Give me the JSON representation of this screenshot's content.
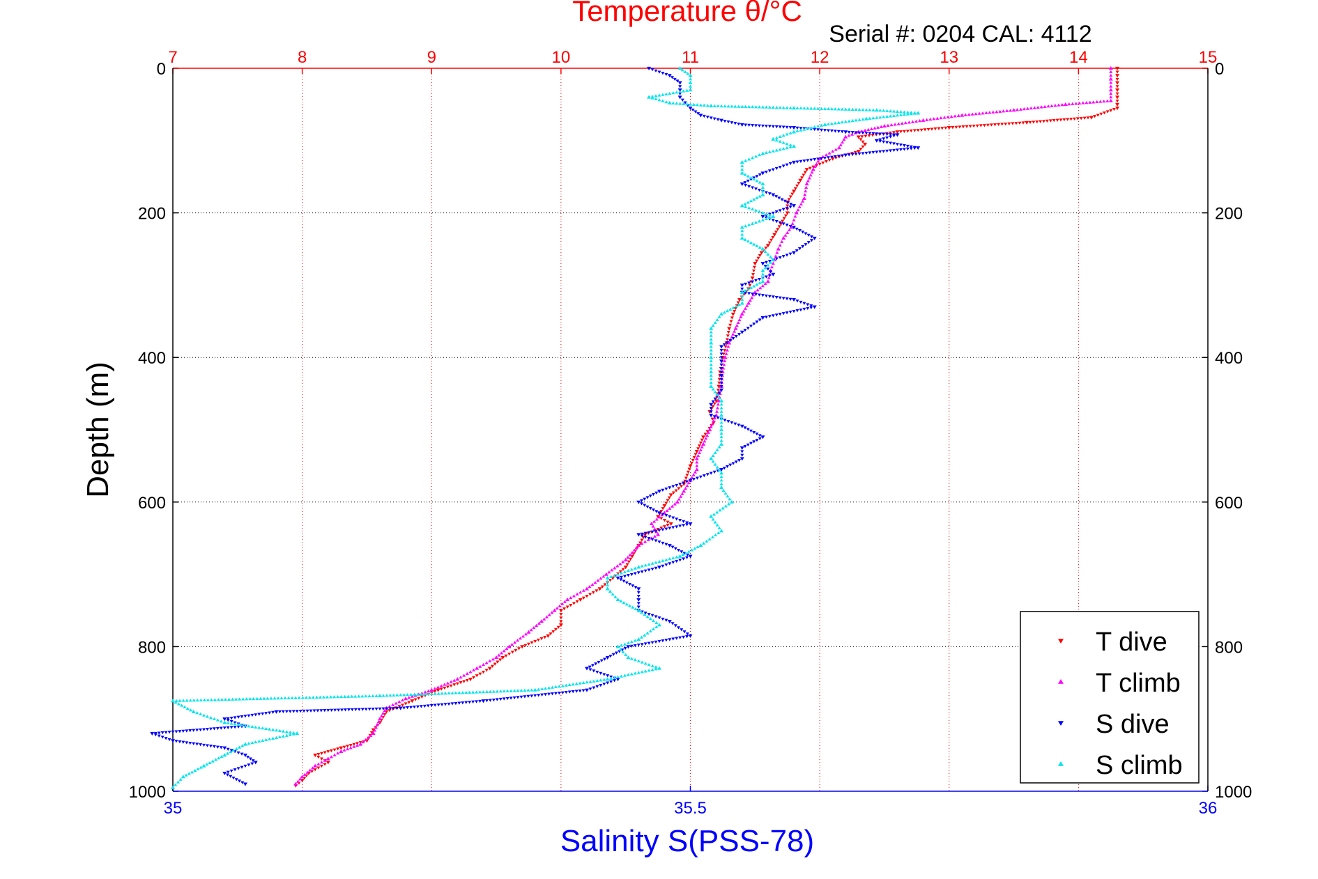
{
  "chart_data": {
    "type": "scatter",
    "title": "Temperature θ/°C",
    "subtitle": "Serial #: 0204  CAL: 4112",
    "ylabel": "Depth (m)",
    "xlabel": "Salinity S(PSS-78)",
    "y_axis": {
      "range": [
        0,
        1000
      ],
      "reversed": true,
      "ticks": [
        "0",
        "200",
        "400",
        "600",
        "800",
        "1000"
      ],
      "grid": true
    },
    "x_top_axis": {
      "quantity": "Temperature θ/°C",
      "range": [
        7,
        15
      ],
      "ticks": [
        "7",
        "8",
        "9",
        "10",
        "11",
        "12",
        "13",
        "14",
        "15"
      ],
      "color": "#ff0000",
      "grid": true
    },
    "x_bottom_axis": {
      "quantity": "Salinity S(PSS-78)",
      "range": [
        35,
        36
      ],
      "ticks": [
        "35",
        "35.5",
        "36"
      ],
      "color": "#0000ff"
    },
    "legend": {
      "placement": "bottom-right"
    },
    "series": [
      {
        "name": "T dive",
        "axis": "temperature",
        "color": "#ff0000",
        "marker": "triangle-down",
        "points": [
          [
            14.3,
            0
          ],
          [
            14.3,
            10
          ],
          [
            14.3,
            20
          ],
          [
            14.3,
            30
          ],
          [
            14.3,
            40
          ],
          [
            14.3,
            50
          ],
          [
            14.3,
            55
          ],
          [
            14.1,
            68
          ],
          [
            13.6,
            75
          ],
          [
            13.0,
            82
          ],
          [
            12.6,
            88
          ],
          [
            12.3,
            95
          ],
          [
            12.35,
            105
          ],
          [
            12.3,
            115
          ],
          [
            12.1,
            125
          ],
          [
            11.9,
            140
          ],
          [
            11.85,
            155
          ],
          [
            11.8,
            170
          ],
          [
            11.75,
            185
          ],
          [
            11.75,
            200
          ],
          [
            11.7,
            215
          ],
          [
            11.65,
            230
          ],
          [
            11.6,
            245
          ],
          [
            11.55,
            255
          ],
          [
            11.5,
            270
          ],
          [
            11.48,
            290
          ],
          [
            11.45,
            305
          ],
          [
            11.38,
            320
          ],
          [
            11.33,
            340
          ],
          [
            11.3,
            360
          ],
          [
            11.28,
            380
          ],
          [
            11.25,
            400
          ],
          [
            11.23,
            420
          ],
          [
            11.22,
            440
          ],
          [
            11.2,
            460
          ],
          [
            11.15,
            475
          ],
          [
            11.18,
            490
          ],
          [
            11.1,
            510
          ],
          [
            11.05,
            530
          ],
          [
            11.0,
            550
          ],
          [
            10.95,
            575
          ],
          [
            10.85,
            590
          ],
          [
            10.8,
            605
          ],
          [
            10.75,
            620
          ],
          [
            10.85,
            630
          ],
          [
            10.65,
            645
          ],
          [
            10.6,
            660
          ],
          [
            10.55,
            675
          ],
          [
            10.5,
            690
          ],
          [
            10.4,
            705
          ],
          [
            10.3,
            720
          ],
          [
            10.15,
            735
          ],
          [
            10.0,
            750
          ],
          [
            10.0,
            770
          ],
          [
            9.9,
            785
          ],
          [
            9.7,
            800
          ],
          [
            9.55,
            815
          ],
          [
            9.45,
            830
          ],
          [
            9.3,
            845
          ],
          [
            9.05,
            860
          ],
          [
            8.85,
            875
          ],
          [
            8.65,
            890
          ],
          [
            8.6,
            905
          ],
          [
            8.55,
            915
          ],
          [
            8.5,
            930
          ],
          [
            8.3,
            940
          ],
          [
            8.1,
            950
          ],
          [
            8.2,
            960
          ],
          [
            8.05,
            975
          ],
          [
            8.0,
            985
          ],
          [
            7.95,
            992
          ]
        ]
      },
      {
        "name": "T climb",
        "axis": "temperature",
        "color": "#ff00ff",
        "marker": "triangle-up",
        "points": [
          [
            14.25,
            0
          ],
          [
            14.25,
            15
          ],
          [
            14.25,
            30
          ],
          [
            14.25,
            45
          ],
          [
            13.9,
            50
          ],
          [
            13.5,
            58
          ],
          [
            13.1,
            65
          ],
          [
            12.8,
            72
          ],
          [
            12.5,
            80
          ],
          [
            12.3,
            88
          ],
          [
            12.2,
            95
          ],
          [
            12.15,
            110
          ],
          [
            12.0,
            125
          ],
          [
            11.95,
            140
          ],
          [
            11.9,
            160
          ],
          [
            11.88,
            180
          ],
          [
            11.82,
            200
          ],
          [
            11.78,
            220
          ],
          [
            11.72,
            235
          ],
          [
            11.68,
            250
          ],
          [
            11.65,
            265
          ],
          [
            11.62,
            280
          ],
          [
            11.6,
            295
          ],
          [
            11.5,
            310
          ],
          [
            11.45,
            325
          ],
          [
            11.4,
            340
          ],
          [
            11.35,
            360
          ],
          [
            11.3,
            380
          ],
          [
            11.27,
            400
          ],
          [
            11.25,
            420
          ],
          [
            11.24,
            440
          ],
          [
            11.22,
            460
          ],
          [
            11.2,
            480
          ],
          [
            11.15,
            500
          ],
          [
            11.1,
            520
          ],
          [
            11.05,
            540
          ],
          [
            11.05,
            555
          ],
          [
            11.0,
            570
          ],
          [
            10.95,
            585
          ],
          [
            10.9,
            600
          ],
          [
            10.8,
            615
          ],
          [
            10.7,
            630
          ],
          [
            10.75,
            645
          ],
          [
            10.6,
            660
          ],
          [
            10.5,
            680
          ],
          [
            10.35,
            700
          ],
          [
            10.2,
            720
          ],
          [
            10.05,
            735
          ],
          [
            9.95,
            750
          ],
          [
            9.85,
            765
          ],
          [
            9.75,
            780
          ],
          [
            9.6,
            800
          ],
          [
            9.5,
            815
          ],
          [
            9.35,
            830
          ],
          [
            9.2,
            845
          ],
          [
            9.0,
            860
          ],
          [
            8.8,
            872
          ],
          [
            8.65,
            885
          ],
          [
            8.6,
            900
          ],
          [
            8.55,
            920
          ],
          [
            8.45,
            935
          ],
          [
            8.3,
            945
          ],
          [
            8.2,
            955
          ],
          [
            8.1,
            965
          ],
          [
            8.0,
            980
          ],
          [
            7.95,
            990
          ]
        ]
      },
      {
        "name": "S dive",
        "axis": "salinity",
        "color": "#0000ff",
        "marker": "triangle-down",
        "points": [
          [
            35.46,
            0
          ],
          [
            35.48,
            10
          ],
          [
            35.49,
            20
          ],
          [
            35.49,
            30
          ],
          [
            35.49,
            40
          ],
          [
            35.5,
            55
          ],
          [
            35.51,
            65
          ],
          [
            35.53,
            72
          ],
          [
            35.55,
            78
          ],
          [
            35.6,
            82
          ],
          [
            35.65,
            88
          ],
          [
            35.7,
            92
          ],
          [
            35.68,
            100
          ],
          [
            35.72,
            110
          ],
          [
            35.65,
            120
          ],
          [
            35.6,
            130
          ],
          [
            35.57,
            145
          ],
          [
            35.55,
            160
          ],
          [
            35.58,
            175
          ],
          [
            35.6,
            190
          ],
          [
            35.57,
            205
          ],
          [
            35.6,
            220
          ],
          [
            35.62,
            235
          ],
          [
            35.6,
            255
          ],
          [
            35.57,
            270
          ],
          [
            35.58,
            285
          ],
          [
            35.55,
            300
          ],
          [
            35.55,
            310
          ],
          [
            35.6,
            320
          ],
          [
            35.62,
            330
          ],
          [
            35.57,
            345
          ],
          [
            35.55,
            365
          ],
          [
            35.53,
            385
          ],
          [
            35.53,
            405
          ],
          [
            35.53,
            425
          ],
          [
            35.53,
            445
          ],
          [
            35.52,
            465
          ],
          [
            35.52,
            480
          ],
          [
            35.55,
            495
          ],
          [
            35.57,
            510
          ],
          [
            35.55,
            525
          ],
          [
            35.55,
            540
          ],
          [
            35.53,
            555
          ],
          [
            35.5,
            570
          ],
          [
            35.47,
            585
          ],
          [
            35.45,
            600
          ],
          [
            35.47,
            615
          ],
          [
            35.5,
            630
          ],
          [
            35.45,
            645
          ],
          [
            35.48,
            660
          ],
          [
            35.5,
            675
          ],
          [
            35.47,
            690
          ],
          [
            35.43,
            705
          ],
          [
            35.45,
            720
          ],
          [
            35.45,
            735
          ],
          [
            35.45,
            750
          ],
          [
            35.48,
            765
          ],
          [
            35.5,
            785
          ],
          [
            35.44,
            800
          ],
          [
            35.42,
            815
          ],
          [
            35.4,
            830
          ],
          [
            35.43,
            845
          ],
          [
            35.4,
            860
          ],
          [
            35.3,
            875
          ],
          [
            35.22,
            885
          ],
          [
            35.1,
            890
          ],
          [
            35.05,
            900
          ],
          [
            35.07,
            910
          ],
          [
            34.98,
            920
          ],
          [
            35.0,
            930
          ],
          [
            35.05,
            940
          ],
          [
            35.07,
            950
          ],
          [
            35.08,
            960
          ],
          [
            35.05,
            975
          ],
          [
            35.07,
            990
          ]
        ]
      },
      {
        "name": "S climb",
        "axis": "salinity",
        "color": "#00e5ee",
        "marker": "triangle-up",
        "points": [
          [
            35.49,
            0
          ],
          [
            35.5,
            10
          ],
          [
            35.5,
            20
          ],
          [
            35.5,
            30
          ],
          [
            35.46,
            40
          ],
          [
            35.48,
            48
          ],
          [
            35.52,
            52
          ],
          [
            35.6,
            55
          ],
          [
            35.68,
            58
          ],
          [
            35.72,
            62
          ],
          [
            35.67,
            70
          ],
          [
            35.63,
            78
          ],
          [
            35.6,
            88
          ],
          [
            35.58,
            98
          ],
          [
            35.6,
            108
          ],
          [
            35.57,
            118
          ],
          [
            35.55,
            130
          ],
          [
            35.55,
            145
          ],
          [
            35.57,
            160
          ],
          [
            35.57,
            175
          ],
          [
            35.55,
            190
          ],
          [
            35.58,
            205
          ],
          [
            35.55,
            220
          ],
          [
            35.55,
            235
          ],
          [
            35.57,
            250
          ],
          [
            35.58,
            265
          ],
          [
            35.57,
            280
          ],
          [
            35.57,
            295
          ],
          [
            35.55,
            310
          ],
          [
            35.55,
            325
          ],
          [
            35.53,
            340
          ],
          [
            35.52,
            360
          ],
          [
            35.52,
            380
          ],
          [
            35.52,
            400
          ],
          [
            35.52,
            420
          ],
          [
            35.52,
            440
          ],
          [
            35.53,
            460
          ],
          [
            35.53,
            480
          ],
          [
            35.53,
            500
          ],
          [
            35.53,
            520
          ],
          [
            35.52,
            540
          ],
          [
            35.53,
            560
          ],
          [
            35.53,
            580
          ],
          [
            35.54,
            600
          ],
          [
            35.52,
            620
          ],
          [
            35.53,
            640
          ],
          [
            35.51,
            660
          ],
          [
            35.49,
            675
          ],
          [
            35.45,
            690
          ],
          [
            35.42,
            705
          ],
          [
            35.42,
            720
          ],
          [
            35.43,
            735
          ],
          [
            35.45,
            750
          ],
          [
            35.47,
            770
          ],
          [
            35.45,
            790
          ],
          [
            35.43,
            800
          ],
          [
            35.44,
            815
          ],
          [
            35.47,
            830
          ],
          [
            35.42,
            845
          ],
          [
            35.35,
            860
          ],
          [
            35.2,
            868
          ],
          [
            35.0,
            875
          ],
          [
            35.02,
            890
          ],
          [
            35.05,
            905
          ],
          [
            35.12,
            920
          ],
          [
            35.07,
            935
          ],
          [
            35.05,
            950
          ],
          [
            35.03,
            965
          ],
          [
            35.01,
            980
          ],
          [
            35.0,
            995
          ]
        ]
      }
    ]
  }
}
